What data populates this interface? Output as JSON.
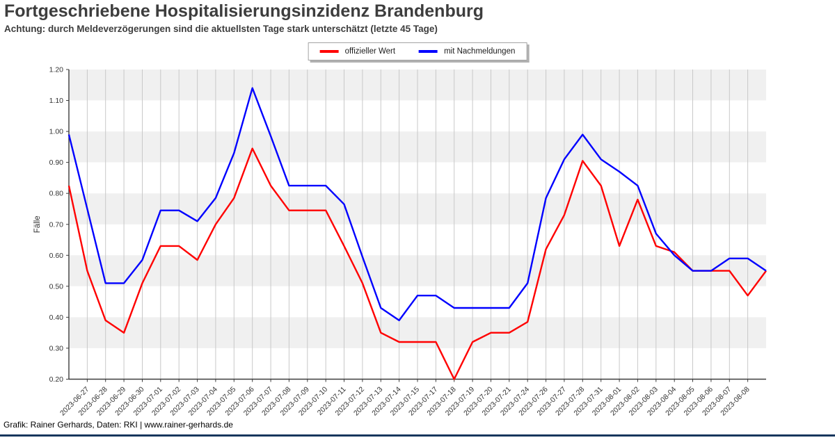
{
  "page": {
    "title": "Fortgeschriebene Hospitalisierungsinzidenz Brandenburg",
    "subtitle": "Achtung: durch Meldeverzögerungen sind die aktuellsten Tage stark unterschätzt (letzte 45 Tage)",
    "footer": "Grafik: Rainer Gerhards, Daten: RKI | www.rainer-gerhards.de"
  },
  "legend": {
    "position": "top-center",
    "items": [
      {
        "label": "offizieller Wert",
        "color": "#ff0000"
      },
      {
        "label": "mit Nachmeldungen",
        "color": "#0000ff"
      }
    ]
  },
  "chart_data": {
    "type": "line",
    "title": "Fortgeschriebene Hospitalisierungsinzidenz Brandenburg",
    "xlabel": "",
    "ylabel": "Fälle",
    "ylim": [
      0.2,
      1.2
    ],
    "yticks": [
      "1.20",
      "1.10",
      "1.00",
      "0.90",
      "0.80",
      "0.70",
      "0.60",
      "0.50",
      "0.40",
      "0.30",
      "0.20"
    ],
    "x_label_rotation": 45,
    "grid": "vertical gridlines at each labeled date, alternating horizontal shaded bands",
    "band_color": "#f0f0f0",
    "grid_color": "#c8c8c8",
    "axis_color": "#3c3c3c",
    "categories": [
      "",
      "2023-06-27",
      "2023-06-28",
      "2023-06-29",
      "2023-06-30",
      "2023-07-01",
      "2023-07-02",
      "2023-07-03",
      "2023-07-04",
      "2023-07-05",
      "2023-07-06",
      "2023-07-07",
      "2023-07-08",
      "2023-07-09",
      "2023-07-10",
      "2023-07-11",
      "2023-07-12",
      "2023-07-13",
      "2023-07-14",
      "2023-07-15",
      "2023-07-17",
      "2023-07-18",
      "2023-07-19",
      "2023-07-20",
      "2023-07-21",
      "2023-07-24",
      "2023-07-26",
      "2023-07-27",
      "2023-07-28",
      "2023-07-31",
      "2023-08-01",
      "2023-08-02",
      "2023-08-03",
      "2023-08-04",
      "2023-08-05",
      "2023-08-06",
      "2023-08-07",
      "2023-08-08",
      ""
    ],
    "series": [
      {
        "name": "offizieller Wert",
        "color": "#ff0000",
        "values": [
          0.825,
          0.55,
          0.39,
          0.35,
          0.51,
          0.63,
          0.63,
          0.585,
          0.7,
          0.785,
          0.945,
          0.825,
          0.745,
          0.745,
          0.745,
          0.63,
          0.51,
          0.35,
          0.32,
          0.32,
          0.32,
          0.2,
          0.32,
          0.35,
          0.35,
          0.385,
          0.62,
          0.73,
          0.905,
          0.825,
          0.63,
          0.78,
          0.63,
          0.61,
          0.55,
          0.55,
          0.55,
          0.47,
          0.55
        ]
      },
      {
        "name": "mit Nachmeldungen",
        "color": "#0000ff",
        "values": [
          0.99,
          0.75,
          0.51,
          0.51,
          0.585,
          0.745,
          0.745,
          0.71,
          0.785,
          0.93,
          1.14,
          0.985,
          0.825,
          0.825,
          0.825,
          0.765,
          0.595,
          0.43,
          0.39,
          0.47,
          0.47,
          0.43,
          0.43,
          0.43,
          0.43,
          0.51,
          0.785,
          0.91,
          0.99,
          0.91,
          0.87,
          0.825,
          0.67,
          0.6,
          0.55,
          0.55,
          0.59,
          0.59,
          0.55
        ]
      }
    ]
  }
}
